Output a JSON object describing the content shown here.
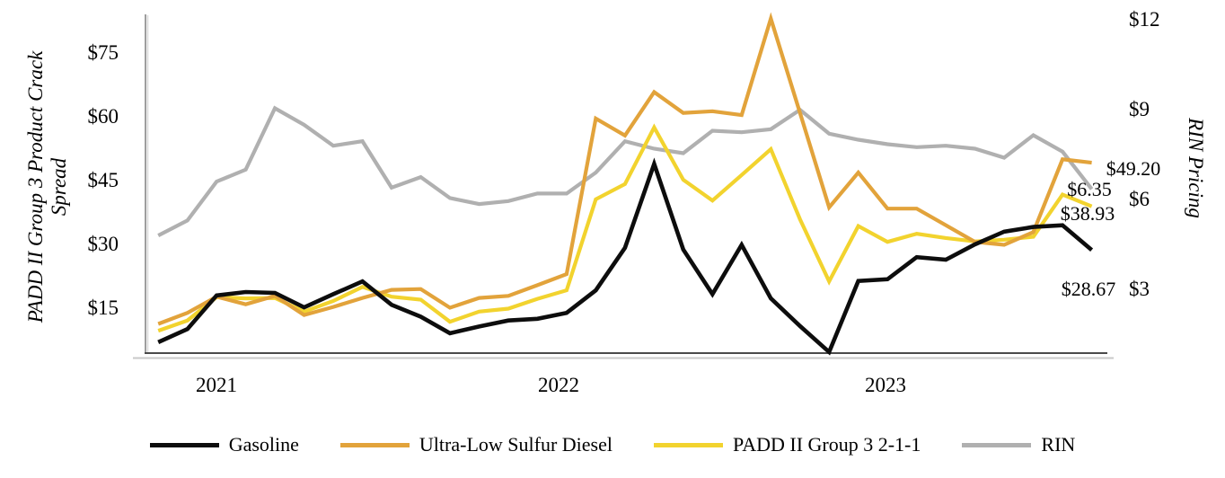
{
  "chart_data": {
    "type": "line",
    "title": "",
    "left_axis": {
      "title": "PADD II Group 3 Product Crack Spread",
      "title_lines": [
        "PADD II Group 3 Product Crack",
        "Spread"
      ],
      "ticks": [
        "$15",
        "$30",
        "$45",
        "$60",
        "$75"
      ],
      "tick_values": [
        15,
        30,
        45,
        60,
        75
      ],
      "range_shown": [
        15,
        75
      ]
    },
    "right_axis": {
      "title": "RIN Pricing",
      "ticks": [
        "$3",
        "$6",
        "$9",
        "$12"
      ],
      "tick_values": [
        3,
        6,
        9,
        12
      ],
      "range_shown": [
        3,
        12
      ]
    },
    "x_axis": {
      "ticks": [
        "2021",
        "2022",
        "2023"
      ]
    },
    "x_periods": [
      "Nov 2020",
      "Dec 2020",
      "Jan 2021",
      "Feb 2021",
      "Mar 2021",
      "Apr 2021",
      "May 2021",
      "Jun 2021",
      "Jul 2021",
      "Aug 2021",
      "Sep 2021",
      "Oct 2021",
      "Nov 2021",
      "Dec 2021",
      "Jan 2022",
      "Feb 2022",
      "Mar 2022",
      "Apr 2022",
      "May 2022",
      "Jun 2022",
      "Jul 2022",
      "Aug 2022",
      "Sep 2022",
      "Oct 2022",
      "Nov 2022",
      "Dec 2022",
      "Jan 2023",
      "Feb 2023",
      "Mar 2023",
      "Apr 2023",
      "May 2023",
      "Jun 2023",
      "Jul 2023"
    ],
    "grid": "off",
    "legend_position": "bottom",
    "series": [
      {
        "name": "RIN",
        "axis": "right",
        "color": "#b0b0b0",
        "data_name": "rin-line",
        "values": [
          4.8,
          5.3,
          6.6,
          7.0,
          9.05,
          8.5,
          7.8,
          7.95,
          6.4,
          6.75,
          6.05,
          5.85,
          5.95,
          6.2,
          6.2,
          6.9,
          7.95,
          7.7,
          7.55,
          8.3,
          8.25,
          8.35,
          9.0,
          8.2,
          8.0,
          7.85,
          7.75,
          7.8,
          7.7,
          7.4,
          8.15,
          7.6,
          6.35
        ]
      },
      {
        "name": "PADD II Group 3 2-1-1",
        "axis": "left",
        "color": "#f2d32e",
        "data_name": "padd-2-1-1-line",
        "values": [
          9.7,
          12.1,
          17.6,
          17.3,
          17.4,
          14.2,
          16.7,
          20.0,
          17.7,
          17.0,
          11.8,
          14.2,
          14.9,
          17.2,
          19.2,
          40.6,
          44.2,
          57.5,
          45.2,
          40.3,
          46.3,
          52.4,
          35.9,
          21.3,
          34.3,
          30.6,
          32.5,
          31.5,
          30.7,
          31.1,
          31.8,
          41.7,
          38.93
        ]
      },
      {
        "name": "Ultra-Low Sulfur Diesel",
        "axis": "left",
        "color": "#e2a33b",
        "data_name": "ulsd-line",
        "values": [
          11.3,
          13.9,
          17.7,
          15.9,
          17.9,
          13.4,
          15.3,
          17.4,
          19.3,
          19.5,
          15.1,
          17.4,
          17.9,
          20.4,
          23.0,
          59.6,
          55.6,
          65.8,
          60.9,
          61.3,
          60.4,
          83.1,
          60.9,
          38.7,
          46.9,
          38.4,
          38.4,
          34.5,
          30.6,
          29.9,
          32.9,
          50.0,
          49.2
        ]
      },
      {
        "name": "Gasoline",
        "axis": "left",
        "color": "#0d0d0d",
        "data_name": "gasoline-line",
        "values": [
          7.0,
          10.1,
          18.0,
          18.8,
          18.6,
          15.2,
          18.3,
          21.3,
          15.8,
          13.0,
          9.1,
          10.7,
          12.1,
          12.5,
          13.9,
          19.2,
          29.2,
          48.9,
          28.8,
          18.3,
          29.9,
          17.3,
          10.8,
          4.7,
          21.4,
          21.8,
          27.0,
          26.4,
          30.0,
          33.0,
          34.1,
          34.5,
          28.67
        ]
      }
    ],
    "end_labels": [
      {
        "text": "$49.20",
        "series": "Ultra-Low Sulfur Diesel"
      },
      {
        "text": "$6.35",
        "series": "RIN"
      },
      {
        "text": "$38.93",
        "series": "PADD II Group 3 2-1-1"
      },
      {
        "text": "$28.67",
        "series": "Gasoline"
      }
    ]
  },
  "legend": {
    "items": [
      {
        "label": "Gasoline",
        "color": "#0d0d0d"
      },
      {
        "label": "Ultra-Low Sulfur Diesel",
        "color": "#e2a33b"
      },
      {
        "label": "PADD II Group 3 2-1-1",
        "color": "#f2d32e"
      },
      {
        "label": "RIN",
        "color": "#b0b0b0"
      }
    ]
  }
}
